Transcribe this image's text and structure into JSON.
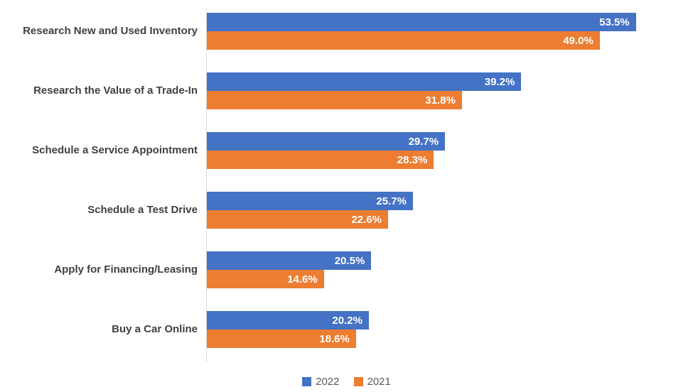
{
  "chart_data": {
    "type": "bar",
    "orientation": "horizontal",
    "title": "",
    "xlabel": "",
    "ylabel": "",
    "xlim": [
      0,
      60
    ],
    "grid": false,
    "legend_position": "bottom",
    "value_suffix": "%",
    "categories": [
      "Research New and Used Inventory",
      "Research the Value of a Trade-In",
      "Schedule a Service Appointment",
      "Schedule a Test Drive",
      "Apply for Financing/Leasing",
      "Buy a Car Online"
    ],
    "series": [
      {
        "name": "2022",
        "color": "#4472C4",
        "values": [
          53.5,
          39.2,
          29.7,
          25.7,
          20.5,
          20.2
        ]
      },
      {
        "name": "2021",
        "color": "#ED7D31",
        "values": [
          49.0,
          31.8,
          28.3,
          22.6,
          14.6,
          18.6
        ]
      }
    ]
  },
  "colors": {
    "background": "#ffffff",
    "axis_line": "#d9d9d9",
    "category_text": "#404040",
    "value_text": "#ffffff",
    "legend_text": "#595959"
  }
}
